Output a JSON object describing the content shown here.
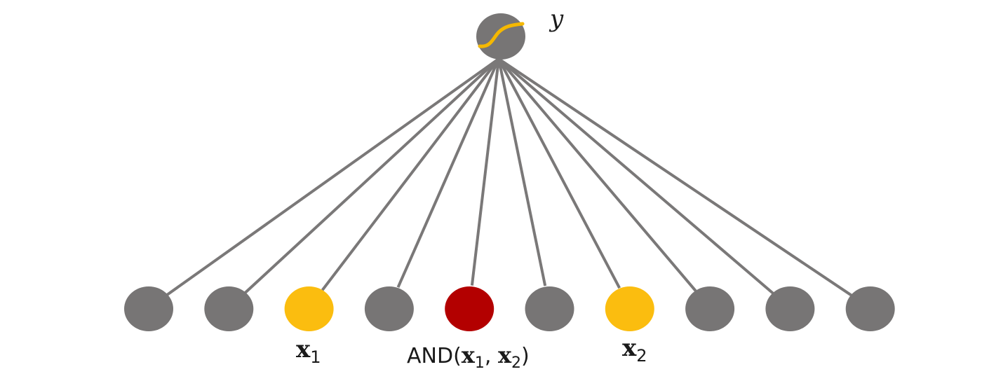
{
  "diagram": {
    "output_node": {
      "label": "y",
      "fill": "#777575",
      "activation_curve_color": "#f5b800"
    },
    "input_nodes": [
      {
        "id": "n1",
        "fill": "#777575",
        "label": ""
      },
      {
        "id": "n2",
        "fill": "#777575",
        "label": ""
      },
      {
        "id": "n3",
        "fill": "#fbbd0f",
        "label": "x",
        "subscript": "1"
      },
      {
        "id": "n4",
        "fill": "#777575",
        "label": ""
      },
      {
        "id": "n5",
        "fill": "#b30000",
        "label": "AND(x1, x2)"
      },
      {
        "id": "n6",
        "fill": "#777575",
        "label": ""
      },
      {
        "id": "n7",
        "fill": "#fbbd0f",
        "label": "x",
        "subscript": "2"
      },
      {
        "id": "n8",
        "fill": "#777575",
        "label": ""
      },
      {
        "id": "n9",
        "fill": "#777575",
        "label": ""
      },
      {
        "id": "n10",
        "fill": "#777575",
        "label": ""
      }
    ],
    "and_label": {
      "prefix": "AND(",
      "x1": "x",
      "x1_sub": "1",
      "sep": ", ",
      "x2": "x",
      "x2_sub": "2",
      "suffix": ")"
    },
    "edge_color": "#7a7878"
  }
}
